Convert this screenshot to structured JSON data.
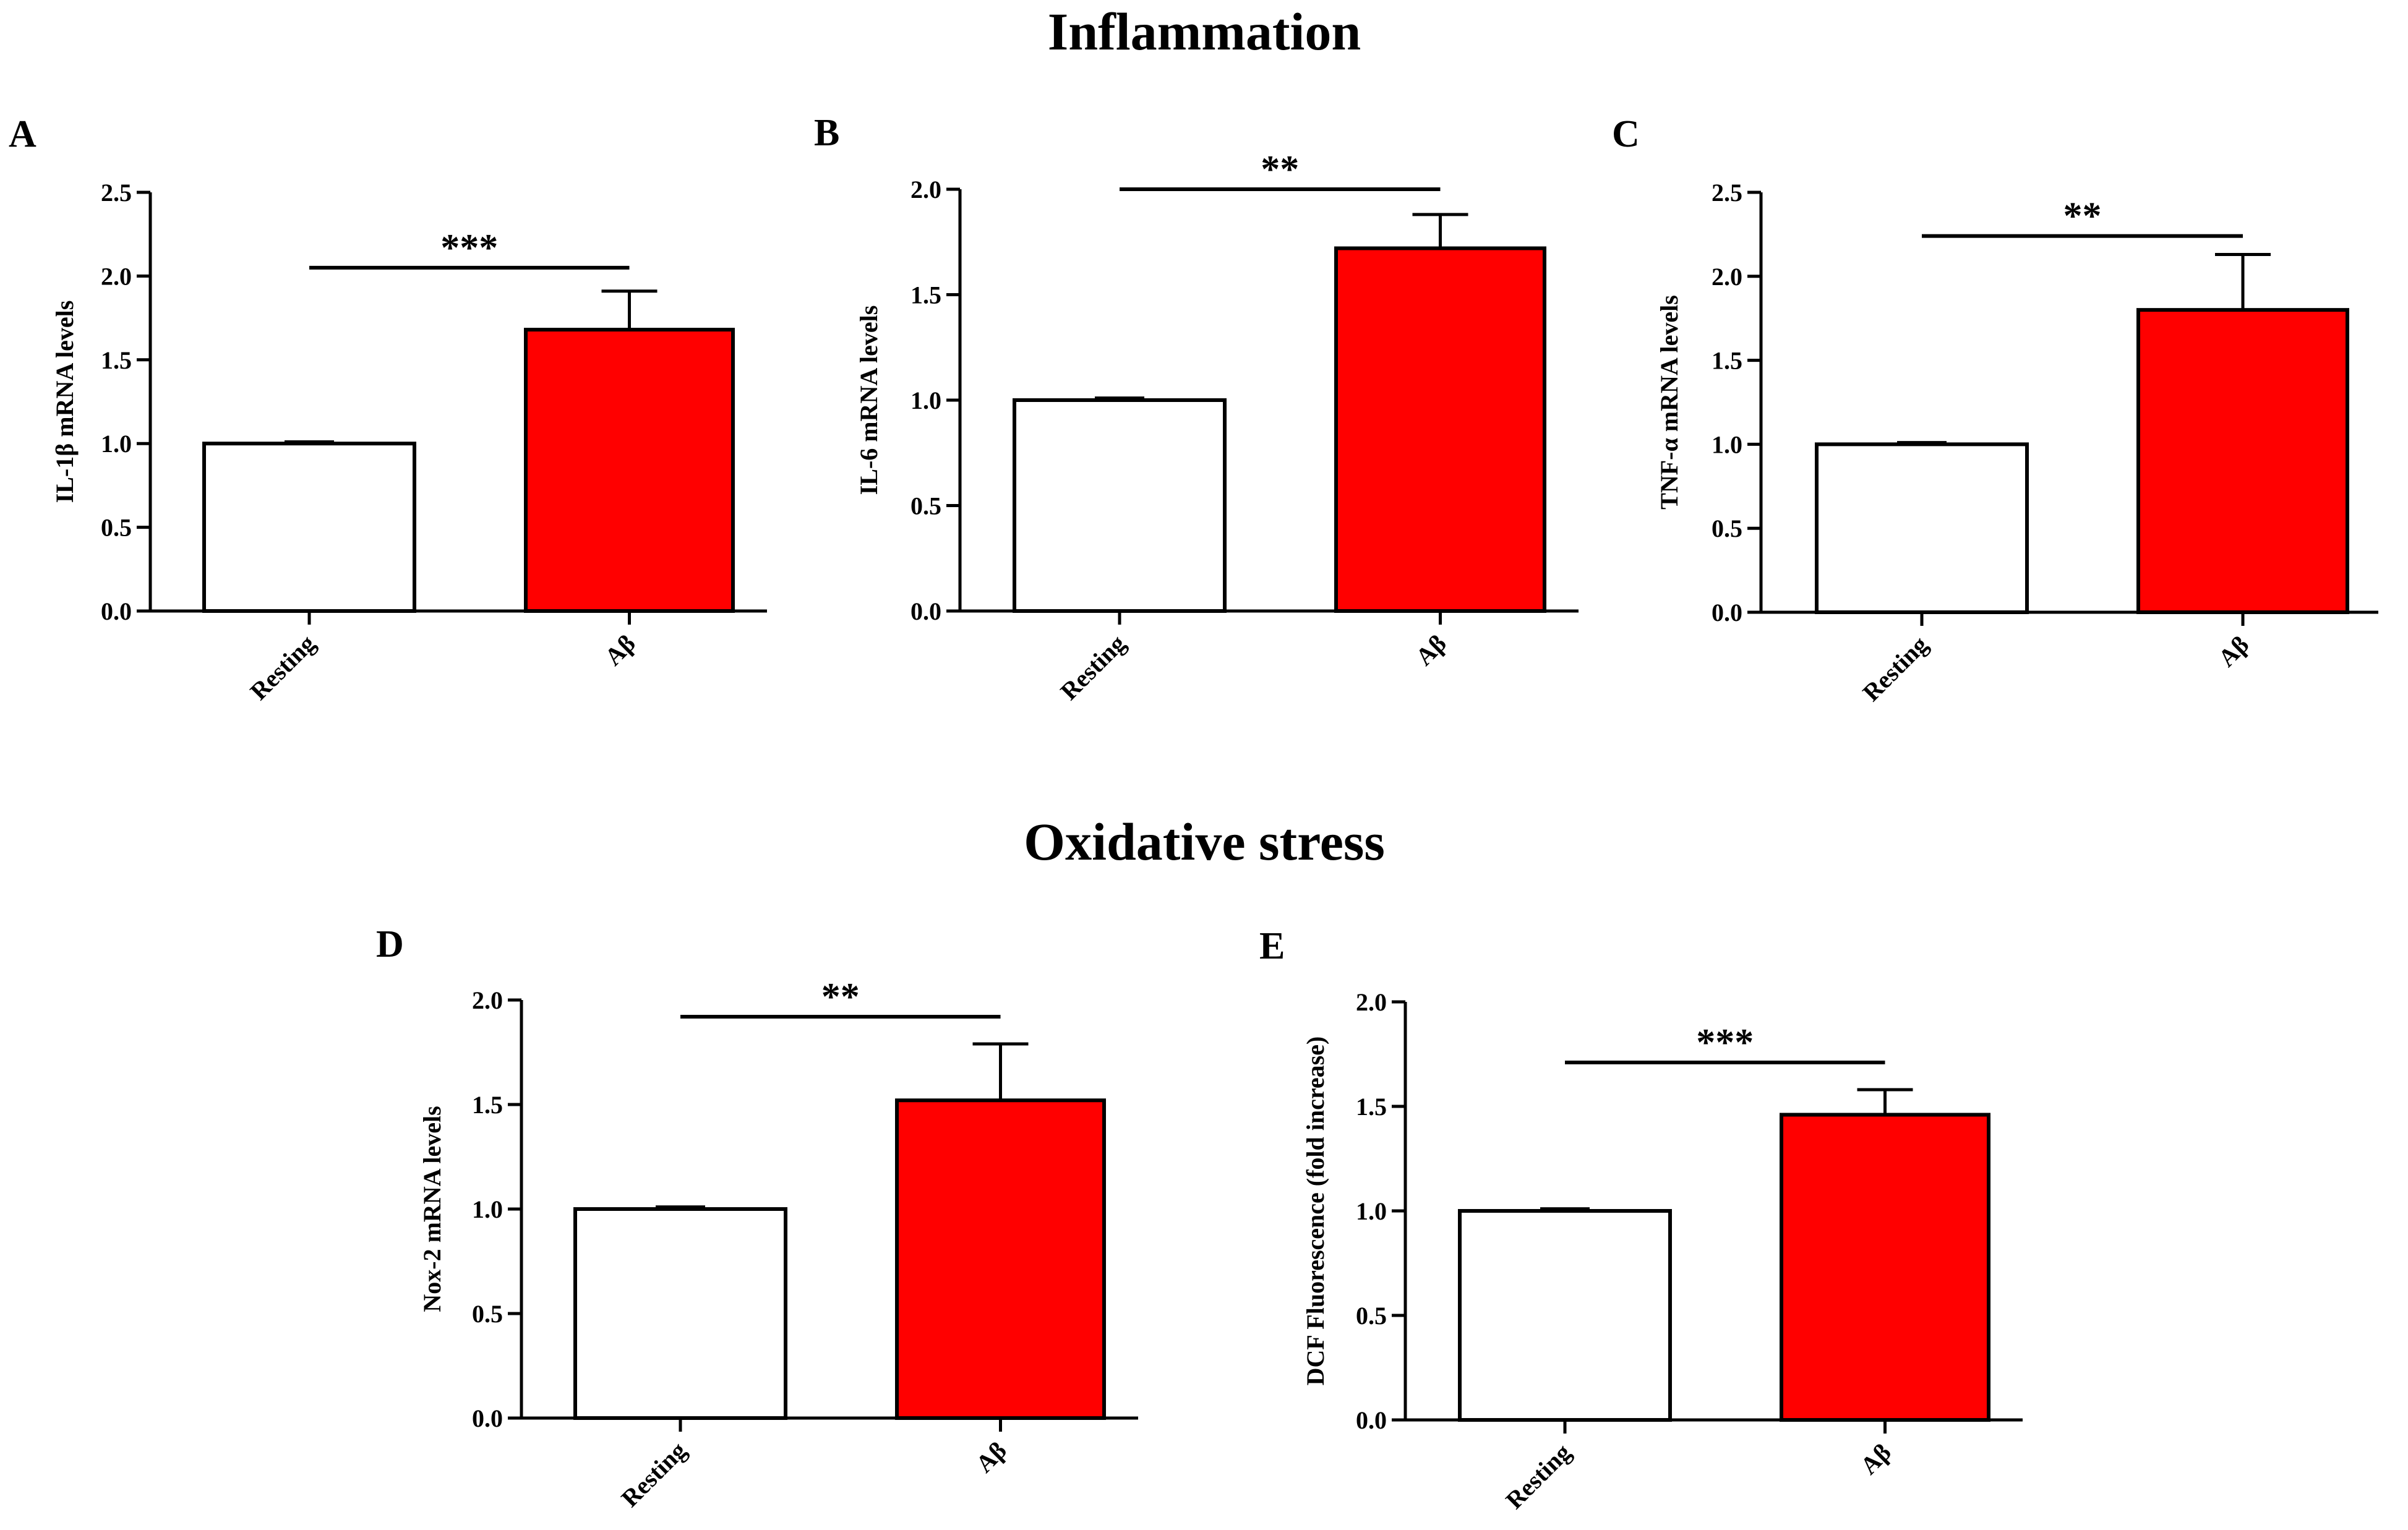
{
  "figure": {
    "sections": {
      "inflammation": "Inflammation",
      "oxidative": "Oxidative stress"
    }
  },
  "colors": {
    "resting_fill": "#ffffff",
    "abeta_fill": "#ff0000",
    "stroke": "#000000"
  },
  "chart_data": [
    {
      "id": "A",
      "letter": "A",
      "type": "bar",
      "ylabel": "IL-1β mRNA levels",
      "categories": [
        "Resting",
        "Aβ"
      ],
      "values": [
        1.0,
        1.68
      ],
      "errors": [
        0.01,
        0.23
      ],
      "ylim": [
        0,
        2.5
      ],
      "yticks": [
        "0.0",
        "0.5",
        "1.0",
        "1.5",
        "2.0",
        "2.5"
      ],
      "significance": "***",
      "sig_y": 2.05
    },
    {
      "id": "B",
      "letter": "B",
      "type": "bar",
      "ylabel": "IL-6 mRNA levels",
      "categories": [
        "Resting",
        "Aβ"
      ],
      "values": [
        1.0,
        1.72
      ],
      "errors": [
        0.01,
        0.16
      ],
      "ylim": [
        0,
        2.0
      ],
      "yticks": [
        "0.0",
        "0.5",
        "1.0",
        "1.5",
        "2.0"
      ],
      "significance": "**",
      "sig_y": 2.0
    },
    {
      "id": "C",
      "letter": "C",
      "type": "bar",
      "ylabel": "TNF-α mRNA levels",
      "categories": [
        "Resting",
        "Aβ"
      ],
      "values": [
        1.0,
        1.8
      ],
      "errors": [
        0.01,
        0.33
      ],
      "ylim": [
        0,
        2.5
      ],
      "yticks": [
        "0.0",
        "0.5",
        "1.0",
        "1.5",
        "2.0",
        "2.5"
      ],
      "significance": "**",
      "sig_y": 2.24
    },
    {
      "id": "D",
      "letter": "D",
      "type": "bar",
      "ylabel": "Nox-2 mRNA levels",
      "categories": [
        "Resting",
        "Aβ"
      ],
      "values": [
        1.0,
        1.52
      ],
      "errors": [
        0.01,
        0.27
      ],
      "ylim": [
        0,
        2.0
      ],
      "yticks": [
        "0.0",
        "0.5",
        "1.0",
        "1.5",
        "2.0"
      ],
      "significance": "**",
      "sig_y": 1.92
    },
    {
      "id": "E",
      "letter": "E",
      "type": "bar",
      "ylabel": "DCF  Fluorescence (fold increase)",
      "categories": [
        "Resting",
        "Aβ"
      ],
      "values": [
        1.0,
        1.46
      ],
      "errors": [
        0.01,
        0.12
      ],
      "ylim": [
        0,
        2.0
      ],
      "yticks": [
        "0.0",
        "0.5",
        "1.0",
        "1.5",
        "2.0"
      ],
      "significance": "***",
      "sig_y": 1.71
    }
  ]
}
